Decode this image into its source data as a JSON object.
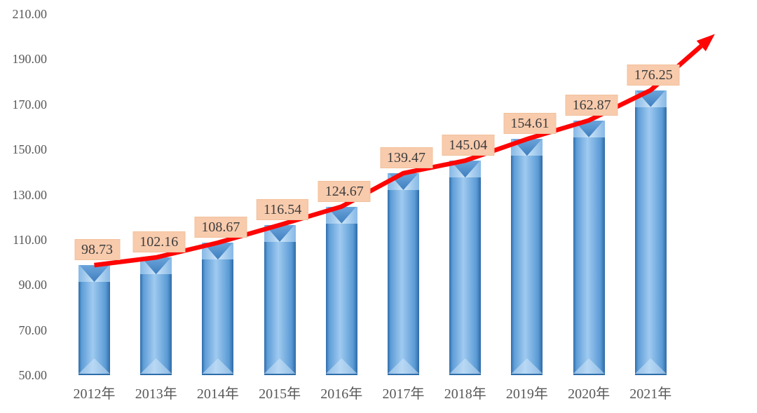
{
  "chart_data": {
    "type": "bar",
    "title": "",
    "categories": [
      "2012年",
      "2013年",
      "2014年",
      "2015年",
      "2016年",
      "2017年",
      "2018年",
      "2019年",
      "2020年",
      "2021年"
    ],
    "series": [
      {
        "name": "bar-values",
        "type": "bar",
        "values": [
          98.73,
          102.16,
          108.67,
          116.54,
          124.67,
          139.47,
          145.04,
          154.61,
          162.87,
          176.25
        ]
      },
      {
        "name": "trend-line",
        "type": "line",
        "values": [
          98.73,
          102.16,
          108.67,
          116.54,
          124.67,
          139.47,
          145.04,
          154.61,
          162.87,
          176.25
        ]
      }
    ],
    "data_labels": [
      "98.73",
      "102.16",
      "108.67",
      "116.54",
      "124.67",
      "139.47",
      "145.04",
      "154.61",
      "162.87",
      "176.25"
    ],
    "ylim": [
      50,
      210
    ],
    "ytick_step": 20,
    "ytick_labels": [
      "50.00",
      "70.00",
      "90.00",
      "110.00",
      "130.00",
      "150.00",
      "170.00",
      "190.00",
      "210.00"
    ],
    "xlabel": "",
    "ylabel": "",
    "grid": false,
    "legend": "none",
    "colors": {
      "bar_main": "#5B9BD5",
      "bar_light": "#A2CCF0",
      "bar_dark": "#2E6DA9",
      "trend_line": "#FE0505",
      "label_box_bg": "#F8CBAD",
      "label_text": "#3D3D3D",
      "axis_text": "#595959",
      "background": "#FFFFFF"
    }
  }
}
